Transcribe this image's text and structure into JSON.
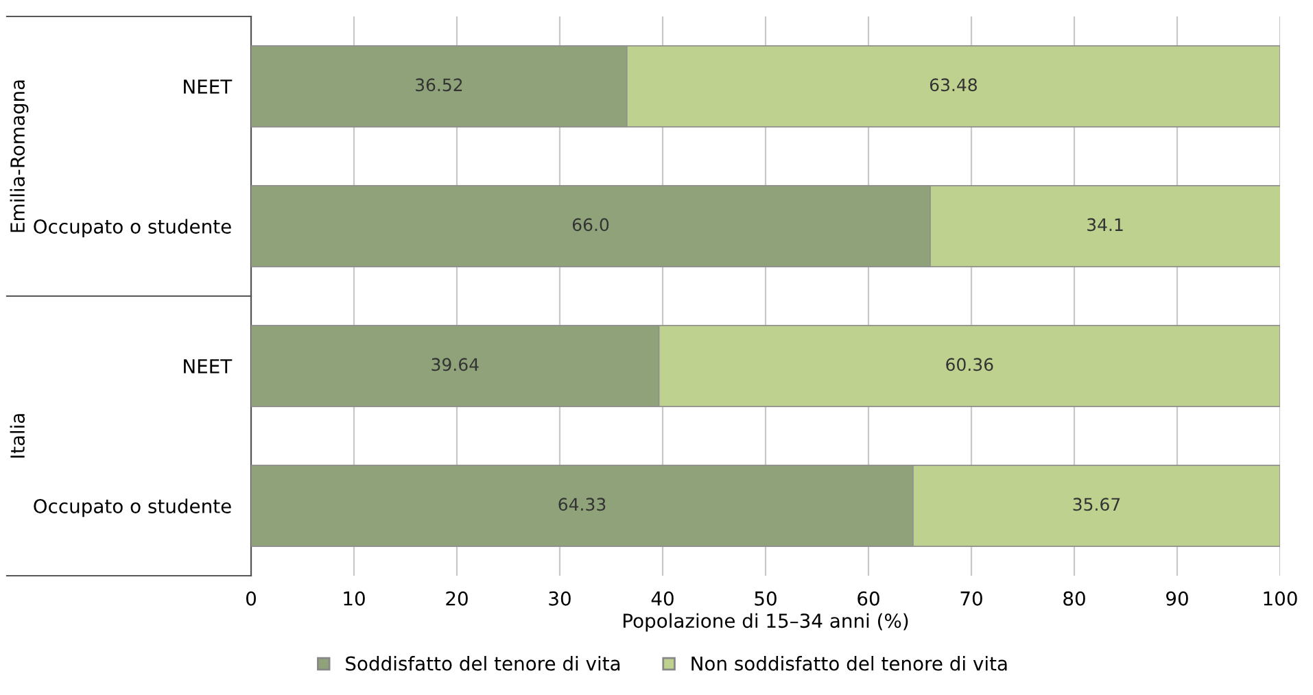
{
  "chart_data": {
    "type": "bar",
    "orientation": "horizontal",
    "stacked": true,
    "xlabel": "Popolazione di 15–34 anni (%)",
    "categories": [
      "NEET",
      "Occupato o studente",
      "NEET",
      "Occupato o studente"
    ],
    "annotations": [
      "Emilia-Romagna",
      "Italia"
    ],
    "series": [
      {
        "name": "Soddisfatto del tenore di vita",
        "color": "#8fa27a",
        "values": [
          36.52,
          66.0,
          39.64,
          64.33
        ],
        "value_labels": [
          "36.52",
          "66.0",
          "39.64",
          "64.33"
        ]
      },
      {
        "name": "Non soddisfatto del tenore di vita",
        "color": "#bfd18e",
        "values": [
          63.48,
          34.1,
          60.36,
          35.67
        ],
        "value_labels": [
          "63.48",
          "34.1",
          "60.36",
          "35.67"
        ]
      }
    ],
    "xlim": [
      0,
      100
    ],
    "xticks": [
      0,
      10,
      20,
      30,
      40,
      50,
      60,
      70,
      80,
      90,
      100
    ],
    "grid": "x",
    "legend": "bottom"
  }
}
